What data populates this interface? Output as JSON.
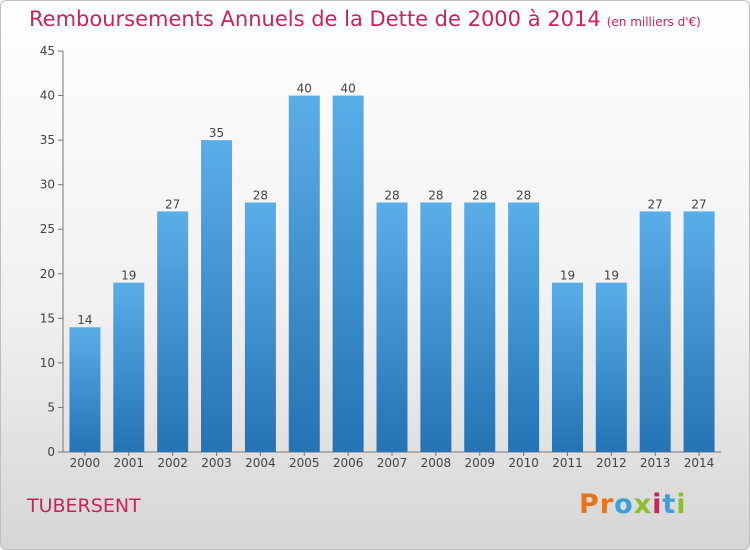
{
  "header": {
    "title": "Remboursements Annuels de la Dette de 2000 à 2014",
    "subtitle": "(en milliers d'€)"
  },
  "footer": {
    "commune": "TUBERSENT",
    "logo_text": "Proxiti",
    "logo_colors": [
      "#e8731a",
      "#e8731a",
      "#3f9fd8",
      "#8cbf2a",
      "#c8245a",
      "#3f9fd8",
      "#8cbf2a"
    ]
  },
  "colors": {
    "bar_top": "#5aaee8",
    "bar_bottom": "#2473b5",
    "title": "#c8245a"
  },
  "chart_data": {
    "type": "bar",
    "title": "Remboursements Annuels de la Dette de 2000 à 2014",
    "subtitle": "(en milliers d'€)",
    "xlabel": "",
    "ylabel": "",
    "categories": [
      "2000",
      "2001",
      "2002",
      "2003",
      "2004",
      "2005",
      "2006",
      "2007",
      "2008",
      "2009",
      "2010",
      "2011",
      "2012",
      "2013",
      "2014"
    ],
    "values": [
      14,
      19,
      27,
      35,
      28,
      40,
      40,
      28,
      28,
      28,
      28,
      19,
      19,
      27,
      27
    ],
    "ylim": [
      0,
      45
    ],
    "yticks": [
      0,
      5,
      10,
      15,
      20,
      25,
      30,
      35,
      40,
      45
    ],
    "grid": false,
    "legend": "none"
  }
}
